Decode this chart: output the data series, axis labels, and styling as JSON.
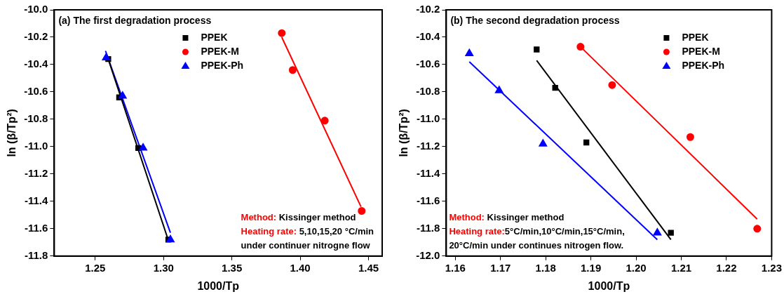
{
  "chart_data": [
    {
      "type": "scatter",
      "title": "(a) The first degradation process",
      "xlabel": "1000/Tp",
      "ylabel": "ln (β/Tp²)",
      "xlim": [
        1.22,
        1.46
      ],
      "ylim": [
        -11.8,
        -10.0
      ],
      "xticks": [
        {
          "value": 1.25,
          "label": "1.25"
        },
        {
          "value": 1.3,
          "label": "1.30"
        },
        {
          "value": 1.35,
          "label": "1.35"
        },
        {
          "value": 1.4,
          "label": "1.40"
        },
        {
          "value": 1.45,
          "label": "1.45"
        }
      ],
      "yticks": [
        {
          "value": -11.8,
          "label": "-11.8"
        },
        {
          "value": -11.6,
          "label": "-11.6"
        },
        {
          "value": -11.4,
          "label": "-11.4"
        },
        {
          "value": -11.2,
          "label": "-11.2"
        },
        {
          "value": -11.0,
          "label": "-11.0"
        },
        {
          "value": -10.8,
          "label": "-10.8"
        },
        {
          "value": -10.6,
          "label": "-10.6"
        },
        {
          "value": -10.4,
          "label": "-10.4"
        },
        {
          "value": -10.2,
          "label": "-10.2"
        },
        {
          "value": -10.0,
          "label": "-10.0"
        }
      ],
      "legend": "top",
      "series": [
        {
          "name": "PPEK",
          "color": "#000000",
          "marker": "square",
          "x": [
            1.2595,
            1.2675,
            1.2815,
            1.3035
          ],
          "values": [
            -10.36,
            -10.64,
            -11.01,
            -11.68
          ]
        },
        {
          "name": "PPEK-M",
          "color": "#ff0000",
          "marker": "circle",
          "x": [
            1.3865,
            1.3945,
            1.418,
            1.445
          ],
          "values": [
            -10.17,
            -10.44,
            -10.81,
            -11.47
          ]
        },
        {
          "name": "PPEK-Ph",
          "color": "#0000ff",
          "marker": "triangle",
          "x": [
            1.258,
            1.27,
            1.285,
            1.305
          ],
          "values": [
            -10.35,
            -10.63,
            -11.01,
            -11.68
          ]
        },
        {
          "type": "line",
          "color": "#000000",
          "marker": "none",
          "line_style": "solid",
          "x": [
            1.2585,
            1.303
          ],
          "values": [
            -10.33,
            -11.67
          ]
        },
        {
          "type": "line",
          "color": "#0000ff",
          "marker": "none",
          "line_style": "solid",
          "x": [
            1.2575,
            1.305
          ],
          "values": [
            -10.3,
            -11.63
          ]
        },
        {
          "type": "line",
          "color": "#ff0000",
          "marker": "none",
          "line_style": "solid",
          "x": [
            1.3865,
            1.4445
          ],
          "values": [
            -10.2,
            -11.44
          ]
        }
      ],
      "annotations": [
        "Method: Kissinger method",
        "Heating rate: 5,10,15,20 °C/min",
        "under continuer nitrogne flow"
      ]
    },
    {
      "type": "scatter",
      "title": "(b) The second degradation process",
      "xlabel": "1000/Tp",
      "ylabel": "ln (β/Tp²)",
      "xlim": [
        1.158,
        1.23
      ],
      "ylim": [
        -12.0,
        -10.2
      ],
      "xticks": [
        {
          "value": 1.16,
          "label": "1.16"
        },
        {
          "value": 1.17,
          "label": "1.17"
        },
        {
          "value": 1.18,
          "label": "1.18"
        },
        {
          "value": 1.19,
          "label": "1.19"
        },
        {
          "value": 1.2,
          "label": "1.20"
        },
        {
          "value": 1.21,
          "label": "1.21"
        },
        {
          "value": 1.22,
          "label": "1.22"
        },
        {
          "value": 1.23,
          "label": "1.23"
        }
      ],
      "yticks": [
        {
          "value": -12.0,
          "label": "-12.0"
        },
        {
          "value": -11.8,
          "label": "-11.8"
        },
        {
          "value": -11.6,
          "label": "-11.6"
        },
        {
          "value": -11.4,
          "label": "-11.4"
        },
        {
          "value": -11.2,
          "label": "-11.2"
        },
        {
          "value": -11.0,
          "label": "-11.0"
        },
        {
          "value": -10.8,
          "label": "-10.8"
        },
        {
          "value": -10.6,
          "label": "-10.6"
        },
        {
          "value": -10.4,
          "label": "-10.4"
        },
        {
          "value": -10.2,
          "label": "-10.2"
        }
      ],
      "legend": "top right",
      "series": [
        {
          "name": "PPEK",
          "color": "#000000",
          "marker": "square",
          "x": [
            1.178,
            1.1821,
            1.189,
            1.2077
          ],
          "values": [
            -10.49,
            -10.77,
            -11.17,
            -11.83
          ]
        },
        {
          "name": "PPEK-M",
          "color": "#ff0000",
          "marker": "circle",
          "x": [
            1.1877,
            1.1947,
            1.212,
            1.2268
          ],
          "values": [
            -10.47,
            -10.75,
            -11.13,
            -11.8
          ]
        },
        {
          "name": "PPEK-Ph",
          "color": "#0000ff",
          "marker": "triangle",
          "x": [
            1.1631,
            1.1697,
            1.1794,
            1.2047
          ],
          "values": [
            -10.52,
            -10.79,
            -11.18,
            -11.83
          ]
        },
        {
          "type": "line",
          "color": "#000000",
          "marker": "none",
          "line_style": "solid",
          "x": [
            1.178,
            1.2077
          ],
          "values": [
            -10.57,
            -11.88
          ]
        },
        {
          "type": "line",
          "color": "#ff0000",
          "marker": "none",
          "line_style": "solid",
          "x": [
            1.1877,
            1.2268
          ],
          "values": [
            -10.47,
            -11.73
          ]
        },
        {
          "type": "line",
          "color": "#0000ff",
          "marker": "none",
          "line_style": "solid",
          "x": [
            1.1631,
            1.2047
          ],
          "values": [
            -10.58,
            -11.88
          ]
        }
      ],
      "annotations": [
        "Method: Kissinger method",
        "Heating rate:5°C/min,10°C/min,15°C/min,",
        "20°C/min under continues nitrogen flow."
      ]
    }
  ]
}
